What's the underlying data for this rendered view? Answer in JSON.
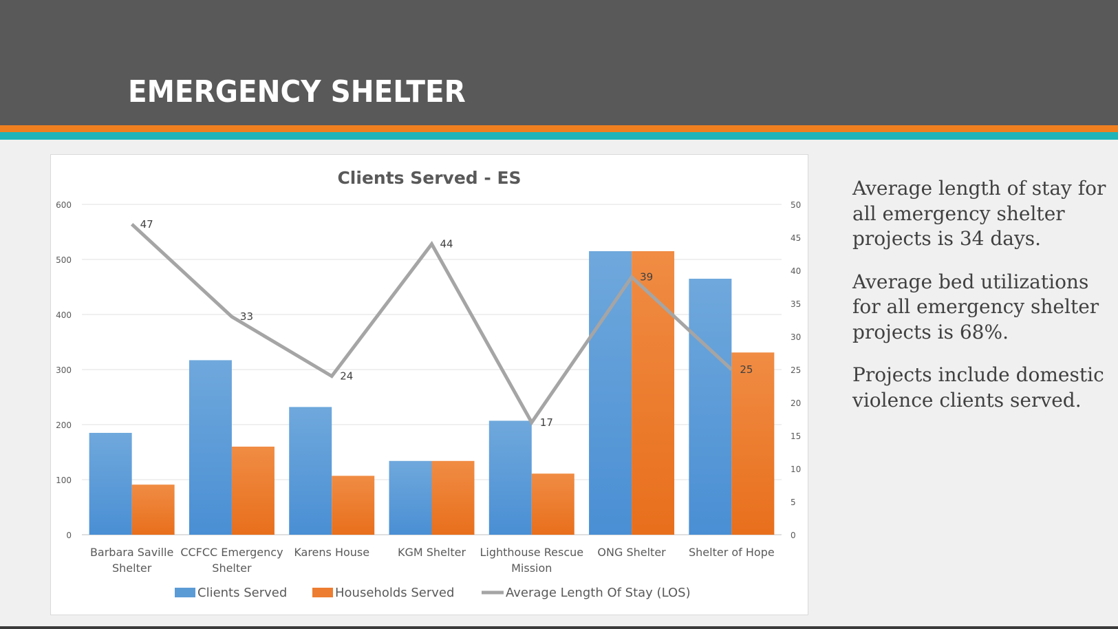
{
  "header": {
    "title": "EMERGENCY SHELTER"
  },
  "colors": {
    "header_bg": "#595959",
    "accent_orange": "#f07f20",
    "accent_teal": "#1fb4b8",
    "clients_bar": "#5b9bd5",
    "households_bar": "#ed7d31",
    "los_line": "#a5a5a5"
  },
  "side_text": {
    "p1": "Average length of stay for all emergency shelter projects is 34 days.",
    "p2": "Average bed utilizations for all emergency shelter projects is 68%.",
    "p3": "Projects include domestic violence clients served."
  },
  "chart_data": {
    "type": "bar",
    "title": "Clients Served - ES",
    "categories": [
      [
        "Barbara Saville",
        "Shelter"
      ],
      [
        "CCFCC Emergency",
        "Shelter"
      ],
      [
        "Karens House"
      ],
      [
        "KGM Shelter"
      ],
      [
        "Lighthouse Rescue",
        "Mission"
      ],
      [
        "ONG Shelter"
      ],
      [
        "Shelter of Hope"
      ]
    ],
    "series": [
      {
        "name": "Clients Served",
        "type": "bar",
        "axis": "left",
        "values": [
          185,
          317,
          232,
          134,
          207,
          515,
          465
        ]
      },
      {
        "name": "Households Served",
        "type": "bar",
        "axis": "left",
        "values": [
          91,
          160,
          107,
          134,
          111,
          515,
          331
        ]
      },
      {
        "name": "Average Length Of Stay (LOS)",
        "type": "line",
        "axis": "right",
        "values": [
          47,
          33,
          24,
          44,
          17,
          39,
          25
        ]
      }
    ],
    "y_left": {
      "min": 0,
      "max": 600,
      "ticks": [
        0,
        100,
        200,
        300,
        400,
        500,
        600
      ]
    },
    "y_right": {
      "min": 0,
      "max": 50,
      "ticks": [
        0,
        5,
        10,
        15,
        20,
        25,
        30,
        35,
        40,
        45,
        50
      ]
    },
    "grid": true,
    "legend": "bottom"
  }
}
